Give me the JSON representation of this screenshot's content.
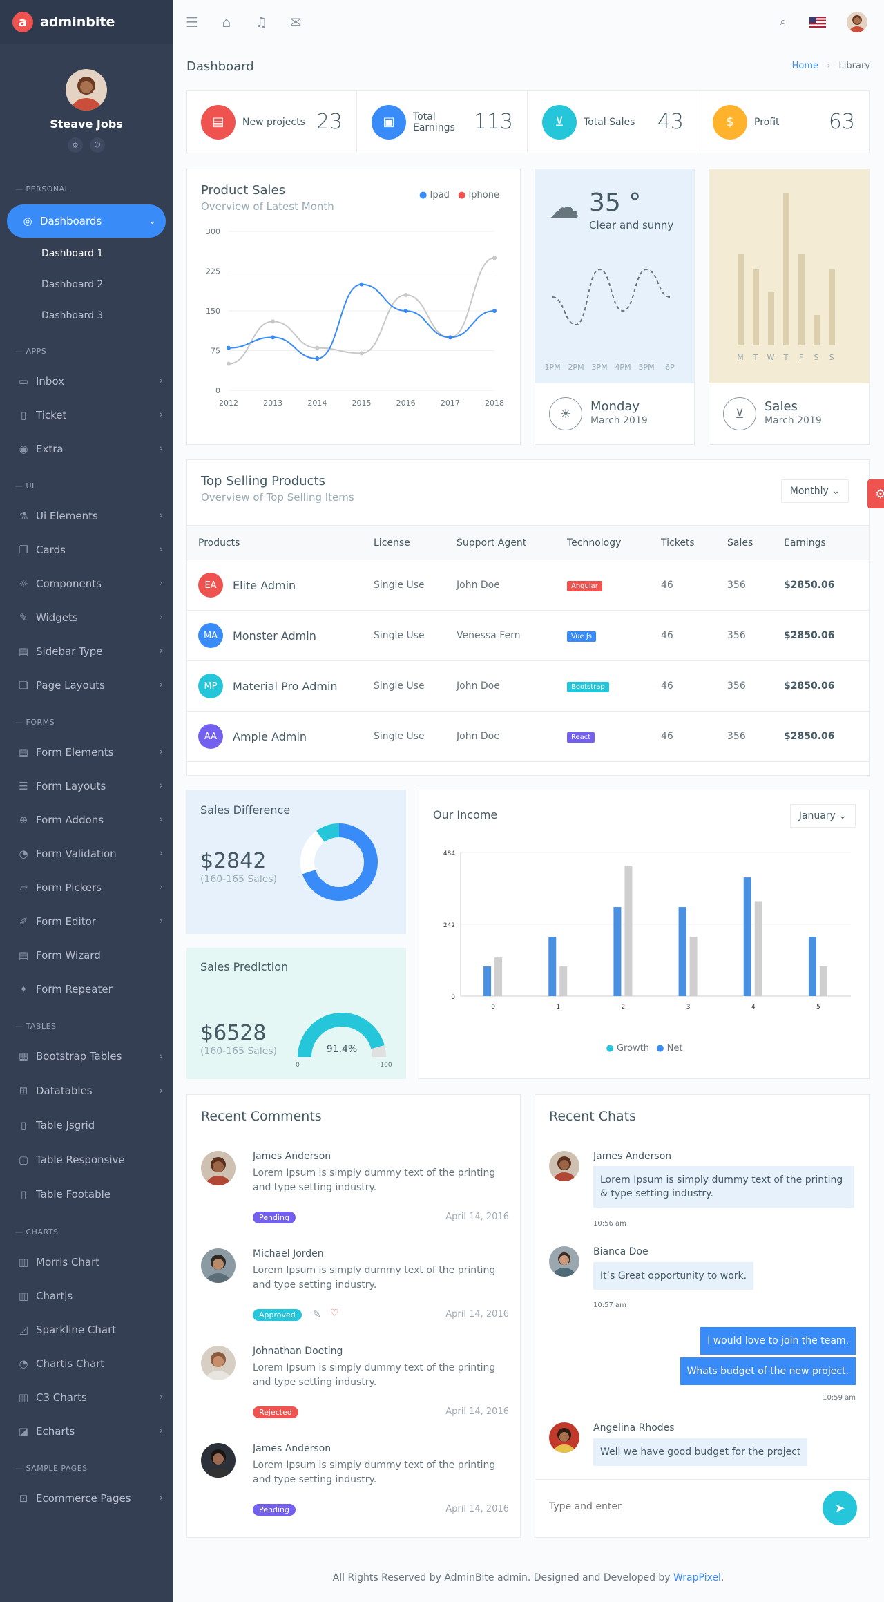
{
  "brand": {
    "name": "adminbite",
    "letter": "a"
  },
  "user": {
    "name": "Steave Jobs"
  },
  "sidebar": {
    "sections": {
      "personal": "PERSONAL",
      "apps": "APPS",
      "ui": "UI",
      "forms": "FORMS",
      "tables": "TABLES",
      "charts": "CHARTS",
      "sample": "SAMPLE PAGES"
    },
    "dashboards": "Dashboards",
    "dash_items": [
      "Dashboard 1",
      "Dashboard 2",
      "Dashboard 3"
    ],
    "apps": [
      "Inbox",
      "Ticket",
      "Extra"
    ],
    "ui": [
      "Ui Elements",
      "Cards",
      "Components",
      "Widgets",
      "Sidebar Type",
      "Page Layouts"
    ],
    "forms": [
      "Form Elements",
      "Form Layouts",
      "Form Addons",
      "Form Validation",
      "Form Pickers",
      "Form Editor",
      "Form Wizard",
      "Form Repeater"
    ],
    "tables": [
      "Bootstrap Tables",
      "Datatables",
      "Table Jsgrid",
      "Table Responsive",
      "Table Footable"
    ],
    "charts": [
      "Morris Chart",
      "Chartjs",
      "Sparkline Chart",
      "Chartis Chart",
      "C3 Charts",
      "Echarts"
    ],
    "sample": [
      "Ecommerce Pages"
    ]
  },
  "page": {
    "title": "Dashboard",
    "breadcrumb": [
      "Home",
      "Library"
    ]
  },
  "stats": [
    {
      "label": "New projects",
      "value": "23",
      "color": "#ef5350"
    },
    {
      "label": "Total Earnings",
      "value": "113",
      "color": "#398bf7"
    },
    {
      "label": "Total Sales",
      "value": "43",
      "color": "#26c6da"
    },
    {
      "label": "Profit",
      "value": "63",
      "color": "#ffb22b"
    }
  ],
  "product_sales": {
    "title": "Product Sales",
    "subtitle": "Overview of Latest Month",
    "legend": [
      "Ipad",
      "Iphone"
    ]
  },
  "weather": {
    "temp": "35 °",
    "desc": "Clear and sunny",
    "times": [
      "1PM",
      "2PM",
      "3PM",
      "4PM",
      "5PM",
      "6P"
    ],
    "day": "Monday",
    "date": "March 2019"
  },
  "sales_card": {
    "days": [
      "M",
      "T",
      "W",
      "T",
      "F",
      "S",
      "S"
    ],
    "title": "Sales",
    "date": "March 2019"
  },
  "top_selling": {
    "title": "Top Selling Products",
    "subtitle": "Overview of Top Selling Items",
    "filter": "Monthly",
    "headers": [
      "Products",
      "License",
      "Support Agent",
      "Technology",
      "Tickets",
      "Sales",
      "Earnings"
    ],
    "rows": [
      {
        "initials": "EA",
        "name": "Elite Admin",
        "license": "Single Use",
        "agent": "John Doe",
        "tech": "Angular",
        "techColor": "#ef5350",
        "tickets": "46",
        "sales": "356",
        "earnings": "$2850.06",
        "color": "#ef5350"
      },
      {
        "initials": "MA",
        "name": "Monster Admin",
        "license": "Single Use",
        "agent": "Venessa Fern",
        "tech": "Vue Js",
        "techColor": "#398bf7",
        "tickets": "46",
        "sales": "356",
        "earnings": "$2850.06",
        "color": "#398bf7"
      },
      {
        "initials": "MP",
        "name": "Material Pro Admin",
        "license": "Single Use",
        "agent": "John Doe",
        "tech": "Bootstrap",
        "techColor": "#26c6da",
        "tickets": "46",
        "sales": "356",
        "earnings": "$2850.06",
        "color": "#26c6da"
      },
      {
        "initials": "AA",
        "name": "Ample Admin",
        "license": "Single Use",
        "agent": "John Doe",
        "tech": "React",
        "techColor": "#7460ee",
        "tickets": "46",
        "sales": "356",
        "earnings": "$2850.06",
        "color": "#7460ee"
      }
    ]
  },
  "sales_difference": {
    "title": "Sales Difference",
    "value": "$2842",
    "note": "(160-165 Sales)"
  },
  "sales_prediction": {
    "title": "Sales Prediction",
    "value": "$6528",
    "note": "(160-165 Sales)",
    "gauge": "91.4%",
    "min": "0",
    "max": "100"
  },
  "income": {
    "title": "Our Income",
    "filter": "January",
    "legend": [
      "Growth",
      "Net"
    ]
  },
  "comments": {
    "title": "Recent Comments",
    "items": [
      {
        "name": "James Anderson",
        "text": "Lorem Ipsum is simply dummy text of the printing and type setting industry.",
        "status": "Pending",
        "statusColor": "#7460ee",
        "date": "April 14, 2016"
      },
      {
        "name": "Michael Jorden",
        "text": "Lorem Ipsum is simply dummy text of the printing and type setting industry.",
        "status": "Approved",
        "statusColor": "#26c6da",
        "date": "April 14, 2016"
      },
      {
        "name": "Johnathan Doeting",
        "text": "Lorem Ipsum is simply dummy text of the printing and type setting industry.",
        "status": "Rejected",
        "statusColor": "#ef5350",
        "date": "April 14, 2016"
      },
      {
        "name": "James Anderson",
        "text": "Lorem Ipsum is simply dummy text of the printing and type setting industry.",
        "status": "Pending",
        "statusColor": "#7460ee",
        "date": "April 14, 2016"
      }
    ]
  },
  "chats": {
    "title": "Recent Chats",
    "placeholder": "Type and enter",
    "m1": {
      "name": "James Anderson",
      "text": "Lorem Ipsum is simply dummy text of the printing & type setting industry.",
      "time": "10:56 am"
    },
    "m2": {
      "name": "Bianca Doe",
      "text": "It’s Great opportunity to work.",
      "time": "10:57 am"
    },
    "m3": {
      "text1": "I would love to join the team.",
      "text2": "Whats budget of the new project.",
      "time": "10:59 am"
    },
    "m4": {
      "name": "Angelina Rhodes",
      "text": "Well we have good budget for the project"
    }
  },
  "footer": {
    "text": "All Rights Reserved by AdminBite admin. Designed and Developed by ",
    "link": "WrapPixel",
    "end": "."
  },
  "chart_data": [
    {
      "type": "line",
      "title": "Product Sales",
      "categories": [
        "2012",
        "2013",
        "2014",
        "2015",
        "2016",
        "2017",
        "2018"
      ],
      "ylim": [
        0,
        300
      ],
      "yticks": [
        0,
        75,
        150,
        225,
        300
      ],
      "series": [
        {
          "name": "Ipad",
          "values": [
            80,
            100,
            60,
            200,
            150,
            100,
            150
          ]
        },
        {
          "name": "Iphone",
          "values": [
            50,
            130,
            80,
            70,
            180,
            100,
            250
          ]
        }
      ]
    },
    {
      "type": "line",
      "categories": [
        "1PM",
        "2PM",
        "3PM",
        "4PM",
        "5PM",
        "6P"
      ],
      "values": [
        3,
        1,
        5,
        2,
        5,
        3
      ]
    },
    {
      "type": "bar",
      "categories": [
        "M",
        "T",
        "W",
        "T",
        "F",
        "S",
        "S"
      ],
      "values": [
        12,
        10,
        7,
        20,
        12,
        4,
        10
      ]
    },
    {
      "type": "pie",
      "title": "Sales Difference",
      "values": [
        70,
        20,
        10
      ]
    },
    {
      "type": "bar",
      "title": "Our Income",
      "categories": [
        "0",
        "1",
        "2",
        "3",
        "4",
        "5"
      ],
      "ylim": [
        0,
        484
      ],
      "yticks": [
        0,
        242,
        484
      ],
      "series": [
        {
          "name": "Net",
          "values": [
            100,
            200,
            300,
            300,
            400,
            200
          ]
        },
        {
          "name": "Growth",
          "values": [
            130,
            100,
            440,
            200,
            320,
            100
          ]
        }
      ]
    }
  ]
}
